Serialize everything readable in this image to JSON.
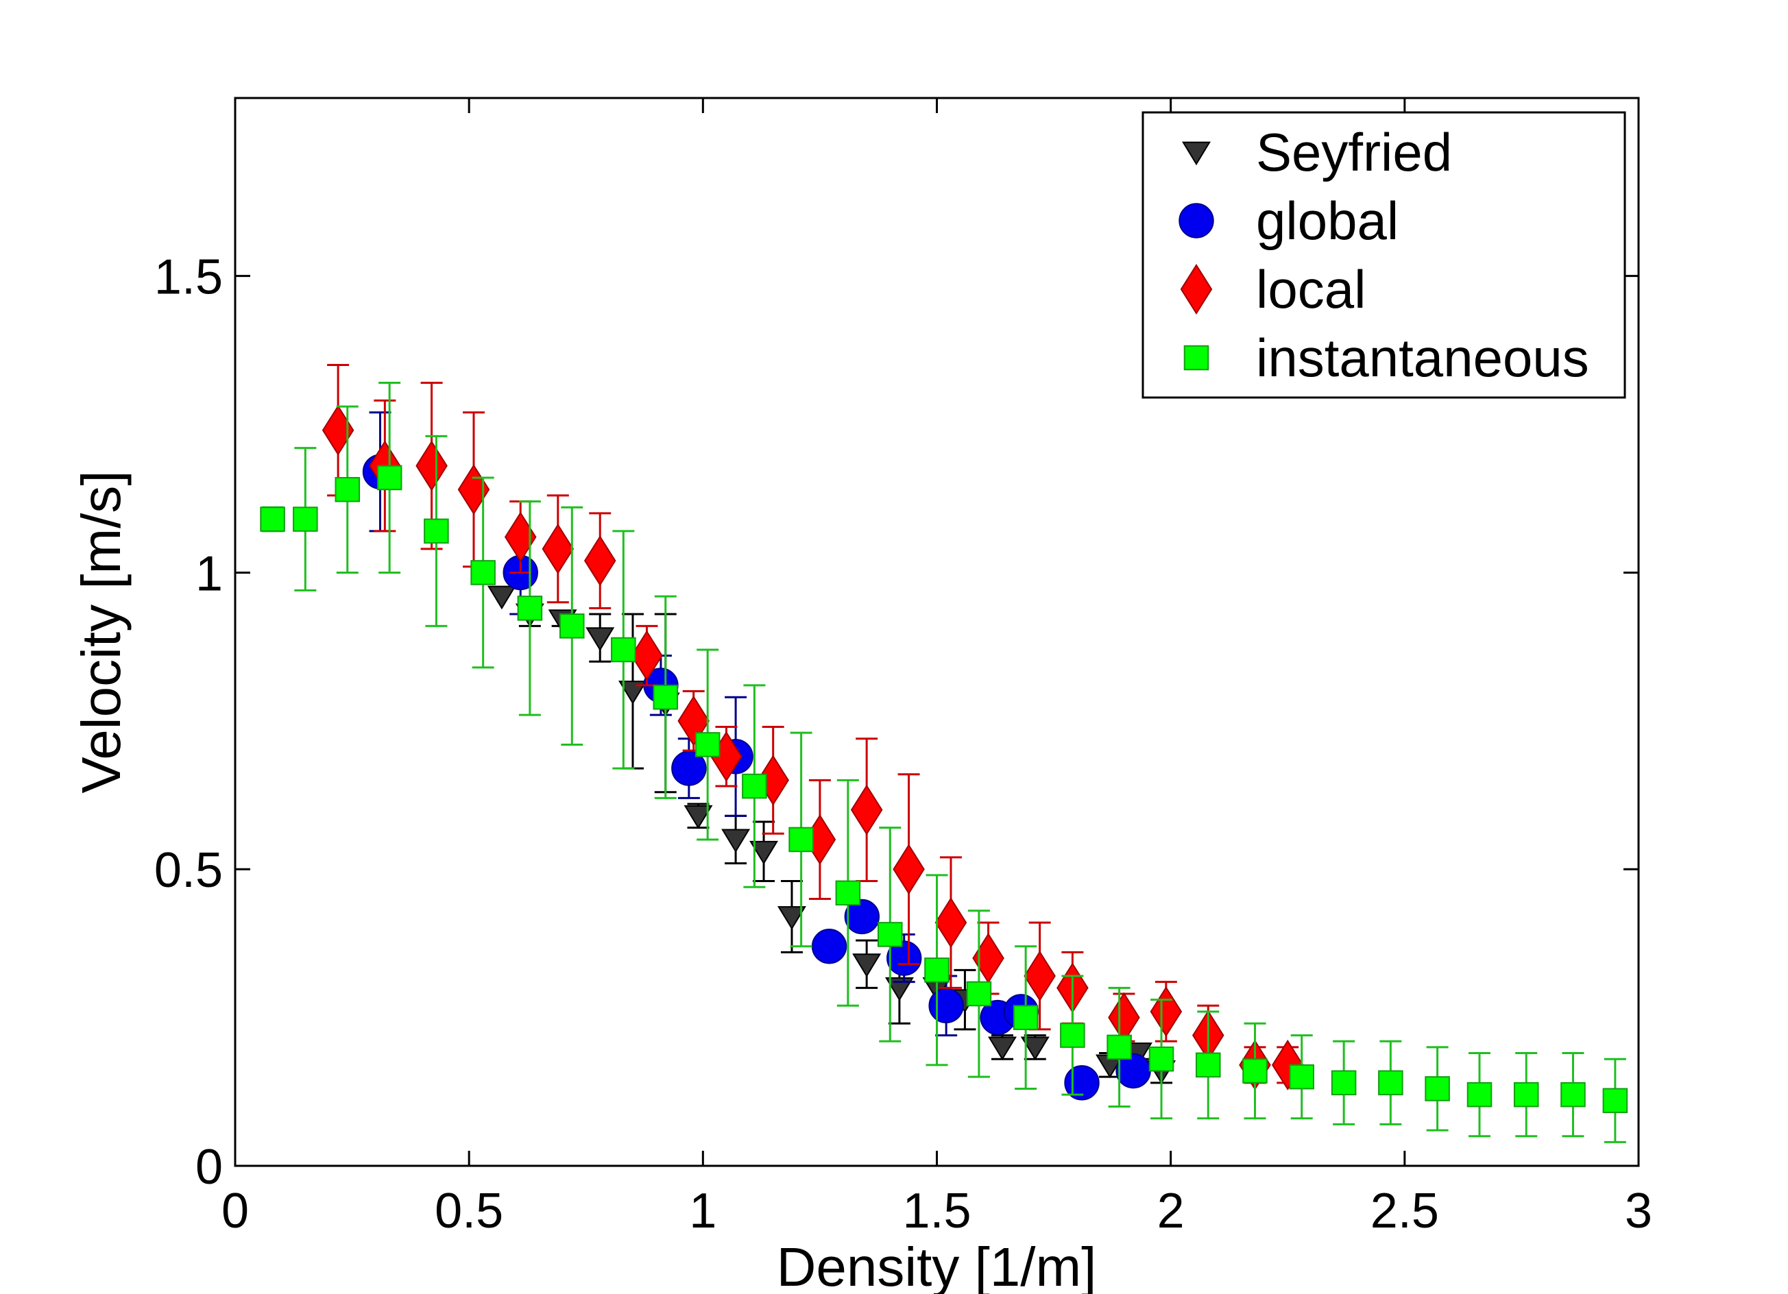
{
  "chart_data": {
    "type": "scatter",
    "title": "",
    "xlabel": "Density [1/m]",
    "ylabel": "Velocity [m/s]",
    "xlim": [
      0,
      3
    ],
    "ylim": [
      0,
      1.8
    ],
    "xticks": [
      {
        "value": 0,
        "label": "0"
      },
      {
        "value": 0.5,
        "label": "0.5"
      },
      {
        "value": 1,
        "label": "1"
      },
      {
        "value": 1.5,
        "label": "1.5"
      },
      {
        "value": 2,
        "label": "2"
      },
      {
        "value": 2.5,
        "label": "2.5"
      },
      {
        "value": 3,
        "label": "3"
      }
    ],
    "yticks": [
      {
        "value": 0,
        "label": "0"
      },
      {
        "value": 0.5,
        "label": "0.5"
      },
      {
        "value": 1,
        "label": "1"
      },
      {
        "value": 1.5,
        "label": "1.5"
      }
    ],
    "grid": false,
    "legend_position": "top-right",
    "series": [
      {
        "name": "Seyfried",
        "marker": "triangle-down",
        "color": "#333333",
        "error_color": "#000000",
        "points": [
          {
            "x": 0.57,
            "y": 0.96,
            "err": 0.0
          },
          {
            "x": 0.63,
            "y": 0.93,
            "err": 0.02
          },
          {
            "x": 0.7,
            "y": 0.92,
            "err": 0.01
          },
          {
            "x": 0.78,
            "y": 0.89,
            "err": 0.04
          },
          {
            "x": 0.85,
            "y": 0.8,
            "err": 0.13
          },
          {
            "x": 0.92,
            "y": 0.78,
            "err": 0.15
          },
          {
            "x": 0.99,
            "y": 0.59,
            "err": 0.02
          },
          {
            "x": 1.07,
            "y": 0.55,
            "err": 0.04
          },
          {
            "x": 1.13,
            "y": 0.53,
            "err": 0.05
          },
          {
            "x": 1.19,
            "y": 0.42,
            "err": 0.06
          },
          {
            "x": 1.35,
            "y": 0.34,
            "err": 0.04
          },
          {
            "x": 1.42,
            "y": 0.3,
            "err": 0.06
          },
          {
            "x": 1.5,
            "y": 0.3,
            "err": 0.0
          },
          {
            "x": 1.56,
            "y": 0.28,
            "err": 0.05
          },
          {
            "x": 1.64,
            "y": 0.2,
            "err": 0.02
          },
          {
            "x": 1.71,
            "y": 0.2,
            "err": 0.02
          },
          {
            "x": 1.87,
            "y": 0.17,
            "err": 0.02
          },
          {
            "x": 1.93,
            "y": 0.19,
            "err": 0.01
          },
          {
            "x": 1.98,
            "y": 0.16,
            "err": 0.02
          }
        ]
      },
      {
        "name": "global",
        "marker": "circle",
        "color": "#0000ee",
        "error_color": "#00008b",
        "points": [
          {
            "x": 0.31,
            "y": 1.17,
            "err": 0.1
          },
          {
            "x": 0.61,
            "y": 1.0,
            "err": 0.07
          },
          {
            "x": 0.91,
            "y": 0.81,
            "err": 0.05
          },
          {
            "x": 0.97,
            "y": 0.67,
            "err": 0.05
          },
          {
            "x": 1.07,
            "y": 0.69,
            "err": 0.1
          },
          {
            "x": 1.27,
            "y": 0.37,
            "err": 0.0
          },
          {
            "x": 1.34,
            "y": 0.42,
            "err": 0.0
          },
          {
            "x": 1.43,
            "y": 0.35,
            "err": 0.04
          },
          {
            "x": 1.52,
            "y": 0.27,
            "err": 0.05
          },
          {
            "x": 1.63,
            "y": 0.25,
            "err": 0.0
          },
          {
            "x": 1.68,
            "y": 0.26,
            "err": 0.0
          },
          {
            "x": 1.81,
            "y": 0.14,
            "err": 0.0
          },
          {
            "x": 1.92,
            "y": 0.16,
            "err": 0.0
          }
        ]
      },
      {
        "name": "local",
        "marker": "diamond",
        "color": "#ff0000",
        "error_color": "#cc0000",
        "points": [
          {
            "x": 0.22,
            "y": 1.24,
            "err": 0.11
          },
          {
            "x": 0.32,
            "y": 1.18,
            "err": 0.11
          },
          {
            "x": 0.42,
            "y": 1.18,
            "err": 0.14
          },
          {
            "x": 0.51,
            "y": 1.14,
            "err": 0.13
          },
          {
            "x": 0.61,
            "y": 1.06,
            "err": 0.06
          },
          {
            "x": 0.69,
            "y": 1.04,
            "err": 0.09
          },
          {
            "x": 0.78,
            "y": 1.02,
            "err": 0.08
          },
          {
            "x": 0.88,
            "y": 0.86,
            "err": 0.05
          },
          {
            "x": 0.98,
            "y": 0.75,
            "err": 0.05
          },
          {
            "x": 1.05,
            "y": 0.69,
            "err": 0.05
          },
          {
            "x": 1.15,
            "y": 0.65,
            "err": 0.09
          },
          {
            "x": 1.25,
            "y": 0.55,
            "err": 0.1
          },
          {
            "x": 1.35,
            "y": 0.6,
            "err": 0.12
          },
          {
            "x": 1.44,
            "y": 0.5,
            "err": 0.16
          },
          {
            "x": 1.53,
            "y": 0.41,
            "err": 0.11
          },
          {
            "x": 1.61,
            "y": 0.35,
            "err": 0.06
          },
          {
            "x": 1.72,
            "y": 0.32,
            "err": 0.09
          },
          {
            "x": 1.79,
            "y": 0.3,
            "err": 0.06
          },
          {
            "x": 1.9,
            "y": 0.25,
            "err": 0.04
          },
          {
            "x": 1.99,
            "y": 0.26,
            "err": 0.05
          },
          {
            "x": 2.08,
            "y": 0.22,
            "err": 0.05
          },
          {
            "x": 2.18,
            "y": 0.17,
            "err": 0.03
          },
          {
            "x": 2.25,
            "y": 0.17,
            "err": 0.03
          }
        ]
      },
      {
        "name": "instantaneous",
        "marker": "square",
        "color": "#00ff00",
        "error_color": "#1fbf1f",
        "points": [
          {
            "x": 0.08,
            "y": 1.09,
            "err": 0.02
          },
          {
            "x": 0.15,
            "y": 1.09,
            "err": 0.12
          },
          {
            "x": 0.24,
            "y": 1.14,
            "err": 0.14
          },
          {
            "x": 0.33,
            "y": 1.16,
            "err": 0.16
          },
          {
            "x": 0.43,
            "y": 1.07,
            "err": 0.16
          },
          {
            "x": 0.53,
            "y": 1.0,
            "err": 0.16
          },
          {
            "x": 0.63,
            "y": 0.94,
            "err": 0.18
          },
          {
            "x": 0.72,
            "y": 0.91,
            "err": 0.2
          },
          {
            "x": 0.83,
            "y": 0.87,
            "err": 0.2
          },
          {
            "x": 0.92,
            "y": 0.79,
            "err": 0.17
          },
          {
            "x": 1.01,
            "y": 0.71,
            "err": 0.16
          },
          {
            "x": 1.11,
            "y": 0.64,
            "err": 0.17
          },
          {
            "x": 1.21,
            "y": 0.55,
            "err": 0.18
          },
          {
            "x": 1.31,
            "y": 0.46,
            "err": 0.19
          },
          {
            "x": 1.4,
            "y": 0.39,
            "err": 0.18
          },
          {
            "x": 1.5,
            "y": 0.33,
            "err": 0.16
          },
          {
            "x": 1.59,
            "y": 0.29,
            "err": 0.14
          },
          {
            "x": 1.69,
            "y": 0.25,
            "err": 0.12
          },
          {
            "x": 1.79,
            "y": 0.22,
            "err": 0.1
          },
          {
            "x": 1.89,
            "y": 0.2,
            "err": 0.1
          },
          {
            "x": 1.98,
            "y": 0.18,
            "err": 0.1
          },
          {
            "x": 2.08,
            "y": 0.17,
            "err": 0.09
          },
          {
            "x": 2.18,
            "y": 0.16,
            "err": 0.08
          },
          {
            "x": 2.28,
            "y": 0.15,
            "err": 0.07
          },
          {
            "x": 2.37,
            "y": 0.14,
            "err": 0.07
          },
          {
            "x": 2.47,
            "y": 0.14,
            "err": 0.07
          },
          {
            "x": 2.57,
            "y": 0.13,
            "err": 0.07
          },
          {
            "x": 2.66,
            "y": 0.12,
            "err": 0.07
          },
          {
            "x": 2.76,
            "y": 0.12,
            "err": 0.07
          },
          {
            "x": 2.86,
            "y": 0.12,
            "err": 0.07
          },
          {
            "x": 2.95,
            "y": 0.11,
            "err": 0.07
          }
        ]
      }
    ]
  }
}
